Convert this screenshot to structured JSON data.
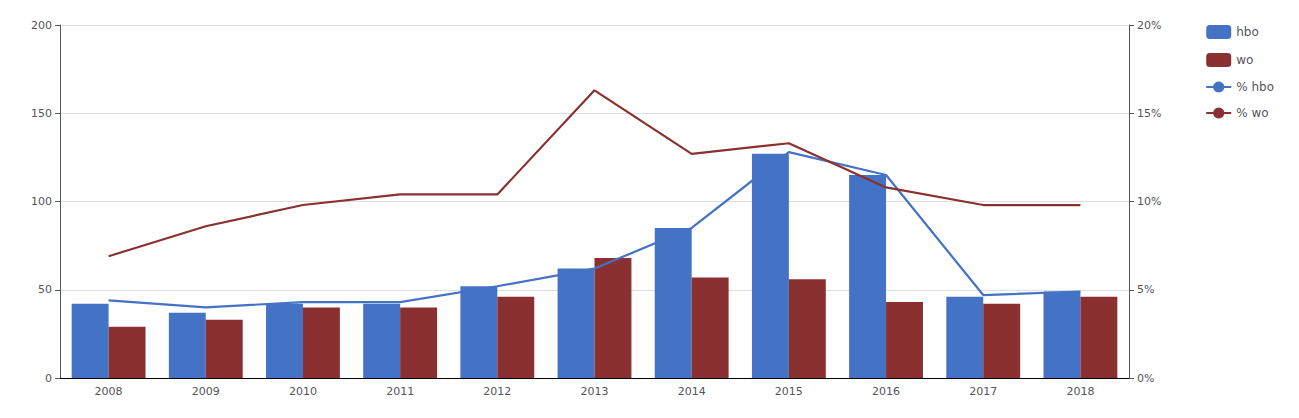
{
  "chart_data": {
    "type": "bar",
    "categories": [
      "2008",
      "2009",
      "2010",
      "2011",
      "2012",
      "2013",
      "2014",
      "2015",
      "2016",
      "2017",
      "2018"
    ],
    "series": [
      {
        "name": "hbo",
        "type": "bar",
        "color": "#4472C4",
        "values": [
          42,
          37,
          42,
          42,
          52,
          62,
          85,
          127,
          115,
          46,
          49
        ]
      },
      {
        "name": "wo",
        "type": "bar",
        "color": "#8B3030",
        "values": [
          29,
          33,
          40,
          40,
          46,
          68,
          57,
          56,
          43,
          42,
          46
        ]
      },
      {
        "name": "% hbo",
        "type": "line",
        "axis": "y2",
        "color": "#4472C4",
        "values": [
          0.044,
          0.04,
          0.043,
          0.043,
          0.052,
          0.062,
          0.085,
          0.128,
          0.115,
          0.047,
          0.049
        ]
      },
      {
        "name": "% wo",
        "type": "line",
        "axis": "y2",
        "color": "#8B3030",
        "values": [
          0.069,
          0.086,
          0.098,
          0.104,
          0.104,
          0.163,
          0.127,
          0.133,
          0.108,
          0.098,
          0.098
        ]
      }
    ],
    "ylim": [
      0,
      200
    ],
    "yticks": [
      0,
      50,
      100,
      150,
      200
    ],
    "y2lim": [
      0.0,
      0.2
    ],
    "y2ticks": [
      {
        "value": 0.0,
        "label": "0%"
      },
      {
        "value": 0.05,
        "label": "5%"
      },
      {
        "value": 0.1,
        "label": "10%"
      },
      {
        "value": 0.15,
        "label": "15%"
      },
      {
        "value": 0.2,
        "label": "20%"
      }
    ],
    "grid": true,
    "legend": "right"
  }
}
